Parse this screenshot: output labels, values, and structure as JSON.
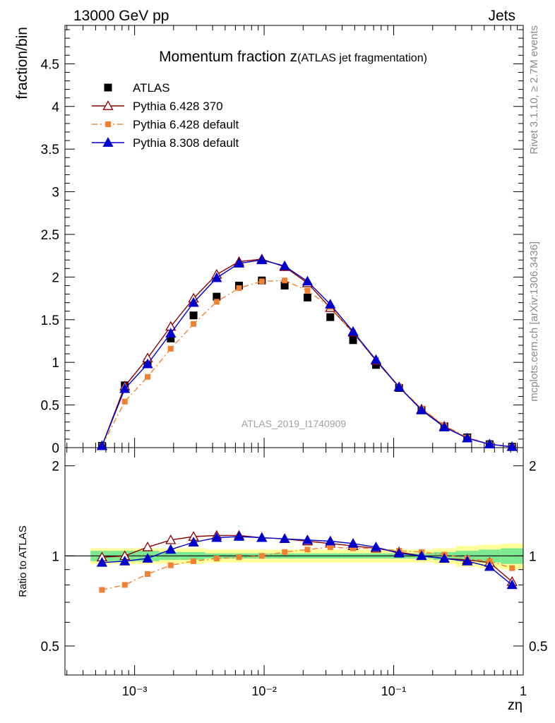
{
  "header": {
    "energy_label": "13000 GeV pp",
    "process_label": "Jets"
  },
  "side_labels": {
    "rivet": "Rivet 3.1.10, ≥ 2.7M events",
    "mcplots": "mcplots.cern.ch [arXiv:1306.3436]"
  },
  "chart_data": [
    {
      "type": "scatter",
      "title_main": "Momentum fraction z",
      "title_sub": "(ATLAS jet fragmentation)",
      "analysis_label": "ATLAS_2019_I1740909",
      "ylabel": "fraction/bin",
      "xlabel": "zη",
      "x_scale": "log",
      "xlim": [
        0.00029,
        1.0
      ],
      "ylim": [
        0,
        4.95
      ],
      "yticks": [
        0,
        0.5,
        1,
        1.5,
        2,
        2.5,
        3,
        3.5,
        4,
        4.5
      ],
      "ytick_labels": [
        "0",
        "0.5",
        "1",
        "1.5",
        "2",
        "2.5",
        "3",
        "3.5",
        "4",
        "4.5"
      ],
      "x": [
        0.00056,
        0.00084,
        0.00126,
        0.0019,
        0.00285,
        0.0043,
        0.0064,
        0.0096,
        0.0144,
        0.0216,
        0.0324,
        0.0486,
        0.073,
        0.11,
        0.164,
        0.246,
        0.37,
        0.55,
        0.82
      ],
      "legend_position": "top-left",
      "series": [
        {
          "name": "ATLAS",
          "color": "#000000",
          "marker": "square",
          "line": "none",
          "values": [
            0.02,
            0.73,
            1.0,
            1.28,
            1.55,
            1.77,
            1.9,
            1.96,
            1.9,
            1.76,
            1.53,
            1.26,
            0.97,
            0.7,
            0.44,
            0.25,
            0.12,
            0.04,
            0.01
          ]
        },
        {
          "name": "Pythia 6.428 370",
          "color": "#8b0000",
          "marker": "triangle-open",
          "line": "solid",
          "values": [
            0.02,
            0.72,
            1.05,
            1.42,
            1.75,
            2.03,
            2.18,
            2.21,
            2.12,
            1.93,
            1.64,
            1.35,
            1.02,
            0.71,
            0.45,
            0.25,
            0.11,
            0.04,
            0.01
          ]
        },
        {
          "name": "Pythia 6.428 default",
          "color": "#f28030",
          "marker": "square-small",
          "line": "dashdot",
          "values": [
            0.02,
            0.54,
            0.83,
            1.16,
            1.45,
            1.71,
            1.87,
            1.95,
            1.96,
            1.84,
            1.65,
            1.35,
            1.03,
            0.72,
            0.46,
            0.26,
            0.12,
            0.04,
            0.01
          ]
        },
        {
          "name": "Pythia 8.308 default",
          "color": "#0000cc",
          "marker": "triangle-filled",
          "line": "solid",
          "values": [
            0.02,
            0.69,
            0.98,
            1.34,
            1.7,
            1.99,
            2.16,
            2.2,
            2.13,
            1.95,
            1.68,
            1.36,
            1.03,
            0.71,
            0.44,
            0.24,
            0.11,
            0.04,
            0.01
          ]
        }
      ]
    },
    {
      "type": "scatter",
      "ylabel": "Ratio to ATLAS",
      "xlabel": "zη",
      "x_scale": "log",
      "y_scale": "log",
      "xlim": [
        0.00029,
        1.0
      ],
      "ylim": [
        0.4,
        2.3
      ],
      "yticks": [
        0.5,
        1,
        2
      ],
      "ytick_labels": [
        "0.5",
        "1",
        "2"
      ],
      "xticks": [
        0.001,
        0.01,
        0.1,
        1
      ],
      "xtick_labels": [
        "10⁻³",
        "10⁻²",
        "10⁻¹",
        "1"
      ],
      "reference_line": 1.0,
      "band_colors": {
        "stat": "#7ce890",
        "total": "#ffff99"
      },
      "band_total": [
        0.06,
        0.06,
        0.06,
        0.06,
        0.06,
        0.05,
        0.05,
        0.05,
        0.05,
        0.05,
        0.05,
        0.05,
        0.05,
        0.05,
        0.05,
        0.06,
        0.08,
        0.09,
        0.1
      ],
      "band_stat": [
        0.04,
        0.04,
        0.04,
        0.03,
        0.03,
        0.02,
        0.02,
        0.02,
        0.02,
        0.02,
        0.02,
        0.02,
        0.02,
        0.02,
        0.02,
        0.03,
        0.04,
        0.05,
        0.06
      ],
      "x": [
        0.00056,
        0.00084,
        0.00126,
        0.0019,
        0.00285,
        0.0043,
        0.0064,
        0.0096,
        0.0144,
        0.0216,
        0.0324,
        0.0486,
        0.073,
        0.11,
        0.164,
        0.246,
        0.37,
        0.55,
        0.82
      ],
      "series": [
        {
          "name": "Pythia 6.428 370",
          "color": "#8b0000",
          "marker": "triangle-open",
          "line": "solid",
          "values": [
            0.99,
            1.0,
            1.07,
            1.13,
            1.16,
            1.17,
            1.17,
            1.15,
            1.14,
            1.12,
            1.1,
            1.08,
            1.06,
            1.03,
            1.0,
            0.98,
            0.97,
            0.95,
            0.82
          ]
        },
        {
          "name": "Pythia 6.428 default",
          "color": "#f28030",
          "marker": "square-small",
          "line": "dashdot",
          "values": [
            0.77,
            0.8,
            0.87,
            0.93,
            0.96,
            0.98,
            0.99,
            1.0,
            1.03,
            1.05,
            1.07,
            1.06,
            1.06,
            1.04,
            1.03,
            1.01,
            0.98,
            0.96,
            0.91
          ]
        },
        {
          "name": "Pythia 8.308 default",
          "color": "#0000cc",
          "marker": "triangle-filled",
          "line": "solid",
          "values": [
            0.95,
            0.96,
            0.98,
            1.05,
            1.11,
            1.15,
            1.16,
            1.15,
            1.14,
            1.13,
            1.12,
            1.1,
            1.07,
            1.02,
            1.0,
            0.98,
            0.96,
            0.92,
            0.8
          ]
        }
      ]
    }
  ]
}
